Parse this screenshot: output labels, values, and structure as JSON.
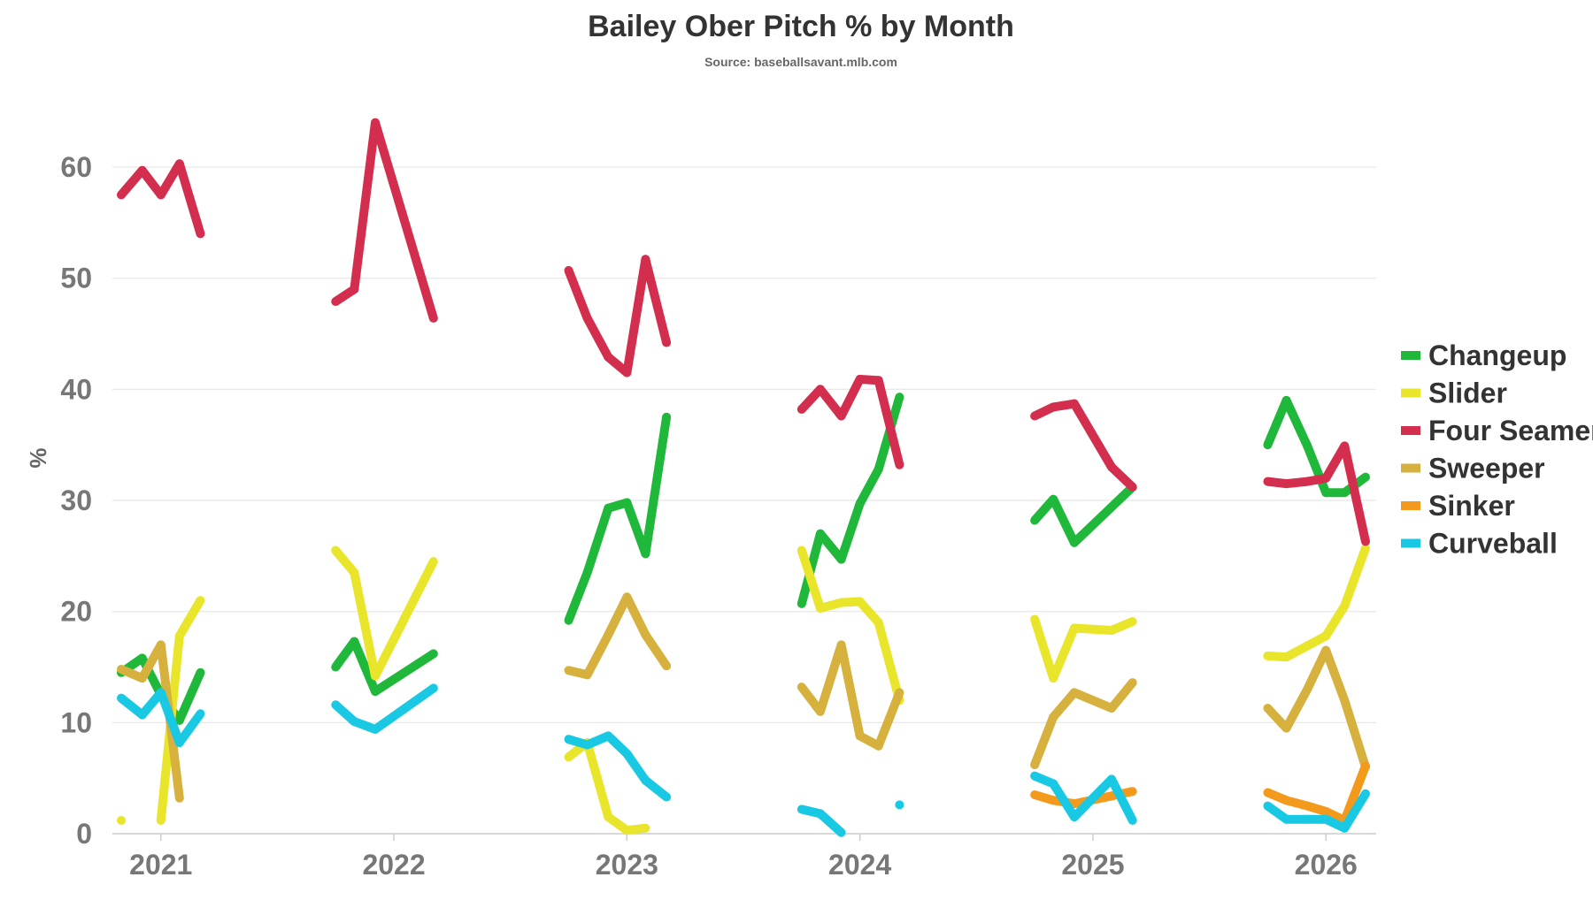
{
  "chart_data": {
    "type": "line",
    "title": "Bailey Ober Pitch % by Month",
    "subtitle": "Source: baseballsavant.mlb.com",
    "ylabel": "%",
    "xlabel": "",
    "ylim": [
      0,
      65
    ],
    "yticks": [
      "0",
      "10",
      "20",
      "30",
      "40",
      "50",
      "60"
    ],
    "xlim": [
      2020.83,
      2026.3
    ],
    "xticks": [
      "2021",
      "2022",
      "2023",
      "2024",
      "2025",
      "2026"
    ],
    "grid": true,
    "legend_position": "right",
    "series": [
      {
        "name": "Changeup",
        "color": "#1fb83a",
        "segments": [
          [
            [
              2020.83,
              14.5
            ],
            [
              2020.92,
              15.8
            ],
            [
              2021.0,
              12.5
            ],
            [
              2021.08,
              10.2
            ],
            [
              2021.17,
              14.5
            ]
          ],
          [
            [
              2021.75,
              15.0
            ],
            [
              2021.83,
              17.3
            ],
            [
              2021.92,
              12.8
            ],
            [
              2022.17,
              16.2
            ]
          ],
          [
            [
              2022.75,
              19.2
            ],
            [
              2022.83,
              23.5
            ],
            [
              2022.92,
              29.3
            ],
            [
              2023.0,
              29.8
            ],
            [
              2023.08,
              25.2
            ],
            [
              2023.17,
              37.5
            ]
          ],
          [
            [
              2023.75,
              20.7
            ],
            [
              2023.83,
              27.0
            ],
            [
              2023.92,
              24.7
            ],
            [
              2024.0,
              29.7
            ],
            [
              2024.08,
              32.8
            ],
            [
              2024.17,
              39.3
            ]
          ],
          [
            [
              2024.75,
              28.2
            ],
            [
              2024.83,
              30.1
            ],
            [
              2024.92,
              26.2
            ],
            [
              2025.17,
              31.2
            ]
          ],
          [
            [
              2025.75,
              35.0
            ],
            [
              2025.83,
              39.0
            ],
            [
              2025.92,
              34.9
            ],
            [
              2026.0,
              30.7
            ],
            [
              2026.08,
              30.7
            ],
            [
              2026.17,
              32.1
            ]
          ]
        ]
      },
      {
        "name": "Slider",
        "color": "#e8e52a",
        "segments": [
          [
            [
              2020.83,
              1.2
            ]
          ],
          [
            [
              2021.0,
              1.2
            ],
            [
              2021.08,
              17.8
            ],
            [
              2021.17,
              21.0
            ]
          ],
          [
            [
              2021.75,
              25.5
            ],
            [
              2021.83,
              23.5
            ],
            [
              2021.92,
              14.2
            ],
            [
              2022.17,
              24.5
            ]
          ],
          [
            [
              2022.75,
              6.9
            ],
            [
              2022.83,
              8.2
            ],
            [
              2022.92,
              1.5
            ],
            [
              2023.0,
              0.3
            ],
            [
              2023.08,
              0.5
            ]
          ],
          [
            [
              2023.75,
              25.5
            ],
            [
              2023.83,
              20.3
            ],
            [
              2023.92,
              20.8
            ],
            [
              2024.0,
              20.9
            ],
            [
              2024.08,
              19.0
            ],
            [
              2024.17,
              12.0
            ]
          ],
          [
            [
              2024.75,
              19.3
            ],
            [
              2024.83,
              14.0
            ],
            [
              2024.92,
              18.5
            ],
            [
              2025.08,
              18.3
            ],
            [
              2025.17,
              19.1
            ]
          ],
          [
            [
              2025.75,
              16.0
            ],
            [
              2025.83,
              15.9
            ],
            [
              2025.92,
              16.9
            ],
            [
              2026.0,
              17.8
            ],
            [
              2026.08,
              20.5
            ],
            [
              2026.17,
              25.7
            ]
          ]
        ]
      },
      {
        "name": "Four Seamer",
        "color": "#d42e4e",
        "segments": [
          [
            [
              2020.83,
              57.5
            ],
            [
              2020.92,
              59.7
            ],
            [
              2021.0,
              57.5
            ],
            [
              2021.08,
              60.3
            ],
            [
              2021.17,
              54.0
            ]
          ],
          [
            [
              2021.75,
              47.9
            ],
            [
              2021.83,
              49.0
            ],
            [
              2021.92,
              64.0
            ],
            [
              2022.17,
              46.4
            ]
          ],
          [
            [
              2022.75,
              50.7
            ],
            [
              2022.83,
              46.4
            ],
            [
              2022.92,
              42.9
            ],
            [
              2023.0,
              41.5
            ],
            [
              2023.08,
              51.7
            ],
            [
              2023.17,
              44.2
            ]
          ],
          [
            [
              2023.75,
              38.2
            ],
            [
              2023.83,
              40.0
            ],
            [
              2023.92,
              37.6
            ],
            [
              2024.0,
              40.9
            ],
            [
              2024.08,
              40.8
            ],
            [
              2024.17,
              33.2
            ]
          ],
          [
            [
              2024.75,
              37.6
            ],
            [
              2024.83,
              38.4
            ],
            [
              2024.92,
              38.7
            ],
            [
              2025.08,
              33.0
            ],
            [
              2025.17,
              31.2
            ]
          ],
          [
            [
              2025.75,
              31.7
            ],
            [
              2025.83,
              31.5
            ],
            [
              2025.92,
              31.7
            ],
            [
              2026.0,
              32.0
            ],
            [
              2026.08,
              34.9
            ],
            [
              2026.17,
              26.3
            ]
          ]
        ]
      },
      {
        "name": "Sweeper",
        "color": "#d6b13e",
        "segments": [
          [
            [
              2020.83,
              14.8
            ],
            [
              2020.92,
              14.0
            ],
            [
              2021.0,
              17.0
            ],
            [
              2021.08,
              3.2
            ]
          ],
          [
            [
              2022.75,
              14.7
            ],
            [
              2022.83,
              14.3
            ],
            [
              2022.92,
              17.9
            ],
            [
              2023.0,
              21.3
            ],
            [
              2023.08,
              17.9
            ],
            [
              2023.17,
              15.1
            ]
          ],
          [
            [
              2023.75,
              13.2
            ],
            [
              2023.83,
              11.0
            ],
            [
              2023.92,
              17.0
            ],
            [
              2024.0,
              8.8
            ],
            [
              2024.08,
              7.9
            ],
            [
              2024.17,
              12.7
            ]
          ],
          [
            [
              2024.75,
              6.2
            ],
            [
              2024.83,
              10.5
            ],
            [
              2024.92,
              12.7
            ],
            [
              2025.08,
              11.3
            ],
            [
              2025.17,
              13.6
            ]
          ],
          [
            [
              2025.75,
              11.3
            ],
            [
              2025.83,
              9.5
            ],
            [
              2025.92,
              13.0
            ],
            [
              2026.0,
              16.5
            ],
            [
              2026.08,
              12.0
            ],
            [
              2026.17,
              6.0
            ]
          ]
        ]
      },
      {
        "name": "Sinker",
        "color": "#f39a1d",
        "segments": [
          [
            [
              2024.75,
              3.5
            ],
            [
              2024.83,
              3.0
            ],
            [
              2024.92,
              2.7
            ],
            [
              2025.08,
              3.4
            ],
            [
              2025.17,
              3.8
            ]
          ],
          [
            [
              2025.75,
              3.7
            ],
            [
              2025.83,
              3.0
            ],
            [
              2025.92,
              2.5
            ],
            [
              2026.0,
              2.0
            ],
            [
              2026.08,
              1.2
            ],
            [
              2026.17,
              6.1
            ]
          ]
        ]
      },
      {
        "name": "Curveball",
        "color": "#19c9e4",
        "segments": [
          [
            [
              2020.83,
              12.2
            ],
            [
              2020.92,
              10.7
            ],
            [
              2021.0,
              12.7
            ],
            [
              2021.08,
              8.2
            ],
            [
              2021.17,
              10.8
            ]
          ],
          [
            [
              2021.75,
              11.6
            ],
            [
              2021.83,
              10.1
            ],
            [
              2021.92,
              9.4
            ],
            [
              2022.17,
              13.1
            ]
          ],
          [
            [
              2022.75,
              8.5
            ],
            [
              2022.83,
              8.0
            ],
            [
              2022.92,
              8.8
            ],
            [
              2023.0,
              7.2
            ],
            [
              2023.08,
              4.8
            ],
            [
              2023.17,
              3.3
            ]
          ],
          [
            [
              2023.75,
              2.2
            ],
            [
              2023.83,
              1.8
            ],
            [
              2023.92,
              0.1
            ]
          ],
          [
            [
              2024.17,
              2.6
            ]
          ],
          [
            [
              2024.75,
              5.2
            ],
            [
              2024.83,
              4.5
            ],
            [
              2024.92,
              1.5
            ],
            [
              2025.08,
              4.9
            ],
            [
              2025.17,
              1.2
            ]
          ],
          [
            [
              2025.75,
              2.5
            ],
            [
              2025.83,
              1.3
            ],
            [
              2025.92,
              1.3
            ],
            [
              2026.0,
              1.3
            ],
            [
              2026.08,
              0.5
            ],
            [
              2026.17,
              3.6
            ]
          ]
        ]
      }
    ]
  }
}
